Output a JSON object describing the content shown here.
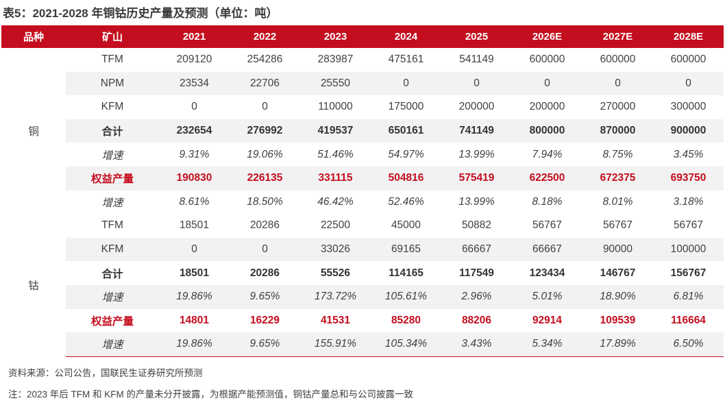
{
  "title": "表5：2021-2028 年铜钴历史产量及预测（单位：吨）",
  "columns": [
    "品种",
    "矿山",
    "2021",
    "2022",
    "2023",
    "2024",
    "2025",
    "2026E",
    "2027E",
    "2028E"
  ],
  "groups": [
    {
      "product": "铜",
      "rows": [
        {
          "label": "TFM",
          "style": "normal",
          "values": [
            "209120",
            "254286",
            "283987",
            "475161",
            "541149",
            "600000",
            "600000",
            "600000"
          ]
        },
        {
          "label": "NPM",
          "style": "normal",
          "values": [
            "23534",
            "22706",
            "25550",
            "0",
            "0",
            "0",
            "0",
            "0"
          ]
        },
        {
          "label": "KFM",
          "style": "normal",
          "values": [
            "0",
            "0",
            "110000",
            "175000",
            "200000",
            "200000",
            "270000",
            "300000"
          ]
        },
        {
          "label": "合计",
          "style": "bold",
          "values": [
            "232654",
            "276992",
            "419537",
            "650161",
            "741149",
            "800000",
            "870000",
            "900000"
          ]
        },
        {
          "label": "增速",
          "style": "rate",
          "values": [
            "9.31%",
            "19.06%",
            "51.46%",
            "54.97%",
            "13.99%",
            "7.94%",
            "8.75%",
            "3.45%"
          ]
        },
        {
          "label": "权益产量",
          "style": "equity",
          "values": [
            "190830",
            "226135",
            "331115",
            "504816",
            "575419",
            "622500",
            "672375",
            "693750"
          ]
        },
        {
          "label": "增速",
          "style": "rate",
          "values": [
            "8.61%",
            "18.50%",
            "46.42%",
            "52.46%",
            "13.99%",
            "8.18%",
            "8.01%",
            "3.18%"
          ]
        }
      ]
    },
    {
      "product": "钴",
      "rows": [
        {
          "label": "TFM",
          "style": "normal",
          "values": [
            "18501",
            "20286",
            "22500",
            "45000",
            "50882",
            "56767",
            "56767",
            "56767"
          ]
        },
        {
          "label": "KFM",
          "style": "normal",
          "values": [
            "0",
            "0",
            "33026",
            "69165",
            "66667",
            "66667",
            "90000",
            "100000"
          ]
        },
        {
          "label": "合计",
          "style": "bold",
          "values": [
            "18501",
            "20286",
            "55526",
            "114165",
            "117549",
            "123434",
            "146767",
            "156767"
          ]
        },
        {
          "label": "增速",
          "style": "rate",
          "values": [
            "19.86%",
            "9.65%",
            "173.72%",
            "105.61%",
            "2.96%",
            "5.01%",
            "18.90%",
            "6.81%"
          ]
        },
        {
          "label": "权益产量",
          "style": "equity",
          "values": [
            "14801",
            "16229",
            "41531",
            "85280",
            "88206",
            "92914",
            "109539",
            "116664"
          ]
        },
        {
          "label": "增速",
          "style": "rate",
          "values": [
            "19.86%",
            "9.65%",
            "155.91%",
            "105.34%",
            "3.43%",
            "5.34%",
            "17.89%",
            "6.50%"
          ]
        }
      ]
    }
  ],
  "footnotes": {
    "source": "资料来源：公司公告，国联民生证券研究所预测",
    "note": "注：2023 年后 TFM 和 KFM 的产量未分开披露，为根据产能预测值，铜钴产量总和与公司披露一致"
  },
  "colors": {
    "header_bg": "#c40d1e",
    "equity_text": "#c40d1e",
    "shade_bg": "#f2f2f2"
  }
}
